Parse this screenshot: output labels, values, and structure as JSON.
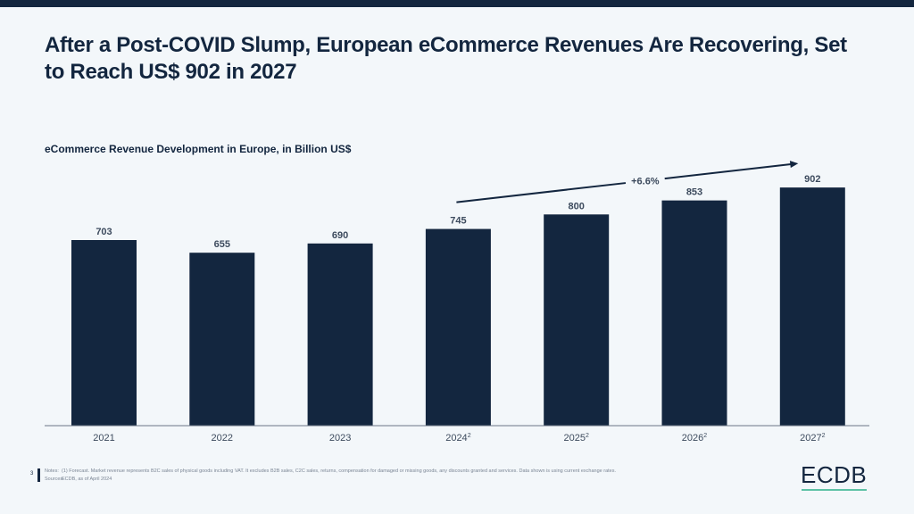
{
  "header": {
    "title": "After a Post-COVID Slump, European eCommerce Revenues Are Recovering, Set to Reach US$ 902 in 2027"
  },
  "chart_data": {
    "type": "bar",
    "title": "eCommerce Revenue Development in Europe, in Billion US$",
    "categories": [
      "2021",
      "2022",
      "2023",
      "2024",
      "2025",
      "2026",
      "2027"
    ],
    "category_superscripts": [
      "",
      "",
      "",
      "2",
      "2",
      "2",
      "2"
    ],
    "values": [
      703,
      655,
      690,
      745,
      800,
      853,
      902
    ],
    "data_labels": [
      "703",
      "655",
      "690",
      "745",
      "800",
      "853",
      "902"
    ],
    "xlabel": "",
    "ylabel": "",
    "ylim": [
      0,
      960
    ],
    "grid": false,
    "bar_color": "#13263f",
    "annotation": {
      "text": "+6.6%",
      "from_category": "2024",
      "to_category": "2027",
      "type": "CAGR arrow"
    }
  },
  "footer": {
    "page_number": "3",
    "notes_label": "Notes:",
    "notes_text": "(1) Forecast. Market revenue represents B2C sales of physical goods including VAT. It excludes B2B sales, C2C sales, returns, compensation for damaged or missing goods, any discounts granted and services. Data shown is using current exchange rates.",
    "sources_label": "Sources:",
    "sources_text": "ECDB, as of April 2024",
    "logo": "ECDB",
    "accent_color": "#5ec2a6"
  }
}
